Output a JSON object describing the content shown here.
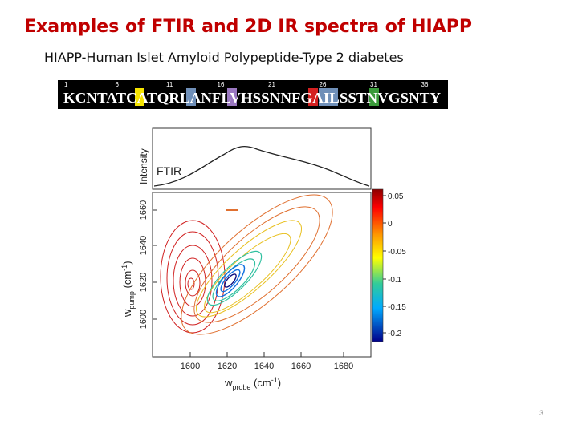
{
  "header": {
    "title": "Examples of FTIR and  2D IR spectra of HIAPP",
    "subtitle": "HIAPP-Human Islet Amyloid Polypeptide-Type 2 diabetes"
  },
  "sequence": {
    "positions": [
      "1",
      "6",
      "11",
      "16",
      "21",
      "26",
      "31",
      "36"
    ],
    "residues": "KCNTATCATQRLANFLVHSSNNFGAILSSTNVGSNTY"
  },
  "figure": {
    "ftir_label": "FTIR",
    "intensity_label": "Intensity",
    "y_label": {
      "main": "w",
      "sub": "pump",
      "unit": " (cm",
      "sup": "-1",
      "close": ")"
    },
    "x_label": {
      "main": "w",
      "sub": "probe",
      "unit": " (cm",
      "sup": "-1",
      "close": ")"
    },
    "y_ticks": [
      "1600",
      "1620",
      "1640",
      "1660"
    ],
    "x_ticks": [
      "1600",
      "1620",
      "1640",
      "1660",
      "1680"
    ],
    "colorbar_ticks": [
      "0.05",
      "0",
      "-0.05",
      "-0.1",
      "-0.15",
      "-0.2"
    ]
  },
  "footer": {
    "page_number": "3"
  }
}
